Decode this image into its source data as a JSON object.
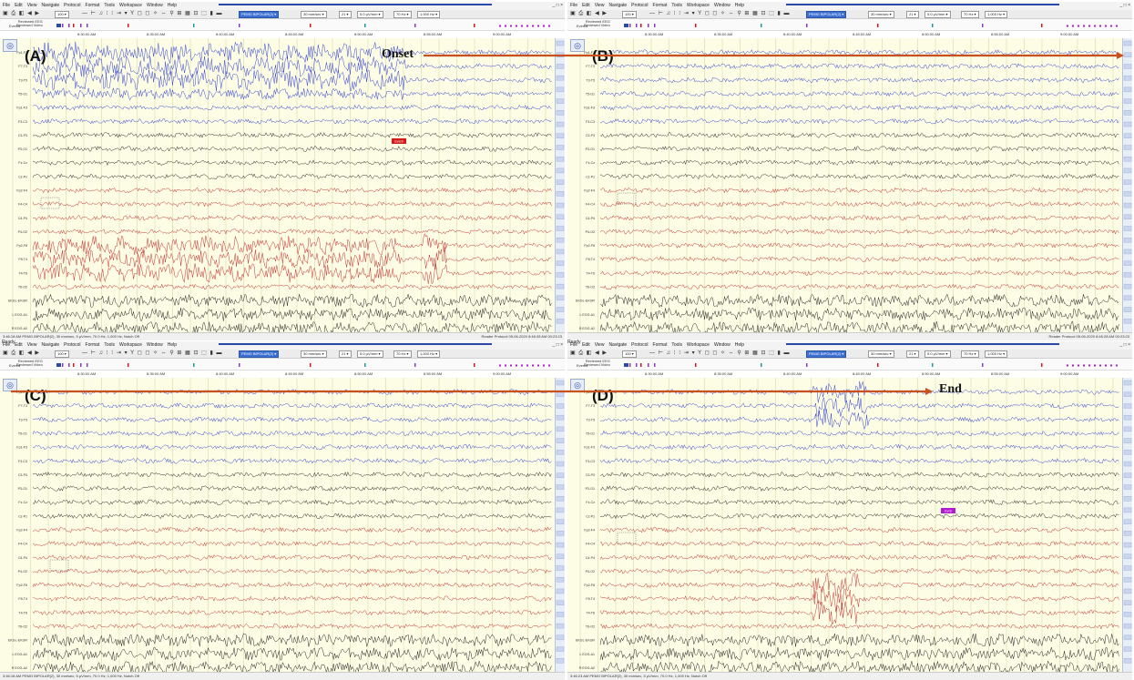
{
  "menu": [
    "File",
    "Edit",
    "View",
    "Navigate",
    "Protocol",
    "Format",
    "Tools",
    "Workspace",
    "Window",
    "Help"
  ],
  "window_buttons": "_ □ ×",
  "toolbar": {
    "zoom": "100 ▾",
    "montage": "PEMG BIPOLAR(2) ▾",
    "timebase": "30 mm/sec ▾",
    "channels": "21 ▾",
    "sensitivity": "5.0 µV/mm ▾",
    "lff": "70 Hz ▾",
    "hff": "1,000 Hz ▾"
  },
  "header": {
    "reviewed_eeg": "Reviewed EEG",
    "reviewed_video": "Reviewed Video",
    "events_label": "Events"
  },
  "timeline_ticks": [
    "8:30:00 AM",
    "8:35:00 AM",
    "8:40:00 AM",
    "8:45:00 AM",
    "8:50:00 AM",
    "8:55:00 AM",
    "9:00:00 AM"
  ],
  "channels": [
    "Fp1-F7",
    "F7-T3",
    "T3-T5",
    "T5-O1",
    "Fp1-F3",
    "F3-C3",
    "C3-P3",
    "P3-O1",
    "Fz-Cz",
    "Cz-Pz",
    "Fp2-F4",
    "F4-C4",
    "C4-P4",
    "P4-O2",
    "Fp2-F8",
    "F8-T4",
    "T4-T6",
    "T6-O2",
    "EKGL-EKGR",
    "L EOG-A1",
    "R EOG-A2"
  ],
  "panels": [
    {
      "label": "(A)",
      "annotation": "Onset",
      "status_left": "3:46:18 AM PEMG BIPOLAR(2), 30 mm/sec, 5 µV/mm, 70.0 Hz, 1,000 Hz, Notch Off",
      "status_right": "Reader Protocol   05-06-2020 8:46:28 AM   00:23:23",
      "event_tag": "Event",
      "event_color": "#d21a1a"
    },
    {
      "label": "(B)",
      "annotation": "",
      "status_left": "",
      "status_right": "Reader Protocol   05-06-2020 8:46:28 AM   00:23:23",
      "event_tag": "",
      "event_color": ""
    },
    {
      "label": "(C)",
      "annotation": "",
      "status_left": "3:46:18 AM PEMG BIPOLAR(2), 30 mm/sec, 5 µV/mm, 70.0 Hz, 1,000 Hz, Notch Off",
      "status_right": "",
      "event_tag": "",
      "event_color": ""
    },
    {
      "label": "(D)",
      "annotation": "End",
      "status_left": "3:46:23 AM PEMG BIPOLAR(2), 30 mm/sec, 5 µV/mm, 70.0 Hz, 1,000 Hz, Notch Off",
      "status_right": "",
      "event_tag": "Evnt",
      "event_color": "#b21ad2"
    }
  ],
  "status_ready": "Ready",
  "colors": {
    "blue_trace": "#1f2fd0",
    "black_trace": "#111111",
    "red_trace": "#c01a1a",
    "arrow": "#c8501e",
    "grid": "#d9d7a8"
  }
}
